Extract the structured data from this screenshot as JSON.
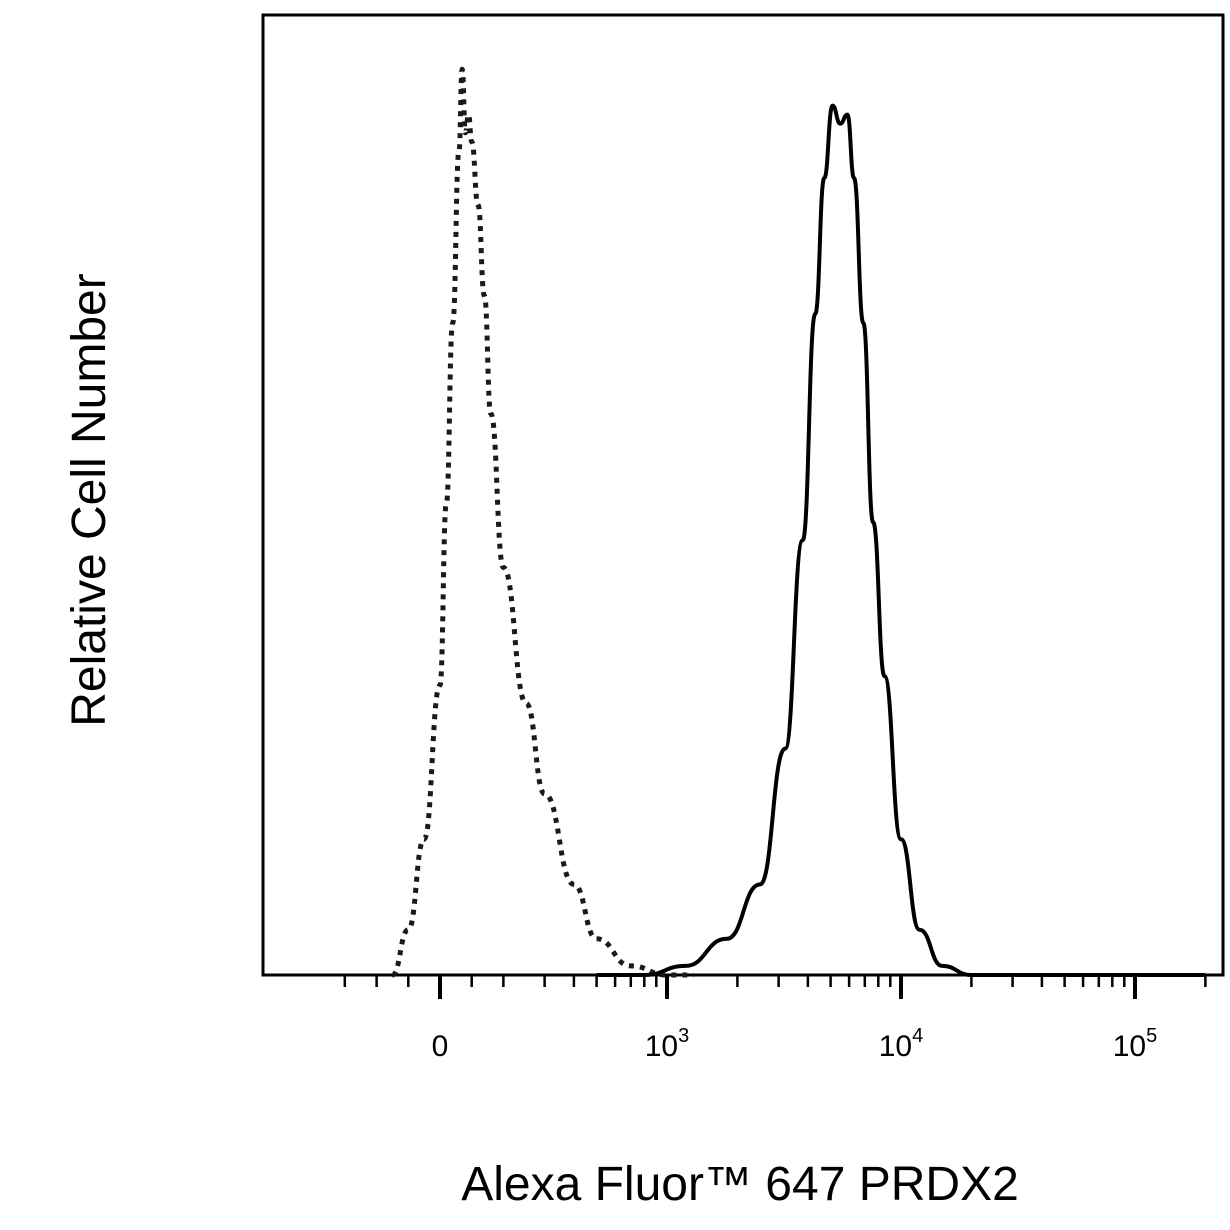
{
  "chart_data": {
    "type": "line",
    "title": "",
    "xlabel": "Alexa Fluor™ 647 PRDX2",
    "ylabel": "Relative Cell Number",
    "x_scale": "biexponential",
    "xlim": [
      -300,
      200000
    ],
    "ylim": [
      0,
      1.06
    ],
    "grid": false,
    "legend": "none",
    "x_ticks": [
      {
        "value": 0,
        "base": "0",
        "exp": ""
      },
      {
        "value": 1000,
        "base": "10",
        "exp": "3"
      },
      {
        "value": 10000,
        "base": "10",
        "exp": "4"
      },
      {
        "value": 100000,
        "base": "10",
        "exp": "5"
      }
    ],
    "series": [
      {
        "style": "dotted",
        "color": "#1a1a1a",
        "x": [
          -150,
          -100,
          -50,
          0,
          20,
          40,
          60,
          70,
          80,
          90,
          100,
          120,
          140,
          160,
          200,
          250,
          300,
          400,
          500,
          700,
          1000,
          1300
        ],
        "y": [
          0.0,
          0.05,
          0.15,
          0.32,
          0.52,
          0.72,
          0.91,
          1.0,
          0.93,
          0.95,
          0.92,
          0.85,
          0.75,
          0.62,
          0.45,
          0.3,
          0.2,
          0.1,
          0.04,
          0.01,
          0.0,
          0.0
        ]
      },
      {
        "style": "solid",
        "color": "#000000",
        "x": [
          500,
          800,
          1200,
          1800,
          2500,
          3200,
          3800,
          4300,
          4700,
          5100,
          5500,
          5900,
          6300,
          6900,
          7600,
          8500,
          10000,
          12000,
          15000,
          20000,
          40000,
          200000
        ],
        "y": [
          0.0,
          0.0,
          0.01,
          0.04,
          0.1,
          0.25,
          0.48,
          0.73,
          0.88,
          0.96,
          0.94,
          0.95,
          0.88,
          0.72,
          0.5,
          0.33,
          0.15,
          0.05,
          0.01,
          0.0,
          0.0,
          0.0
        ]
      }
    ]
  }
}
